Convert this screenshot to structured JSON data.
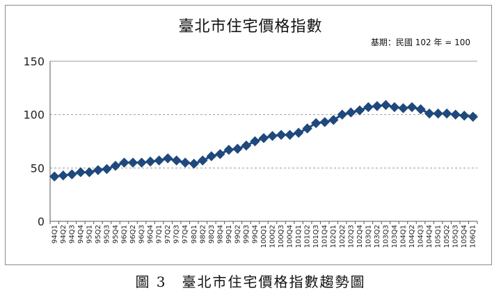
{
  "chart_data": {
    "type": "line",
    "title": "臺北市住宅價格指數",
    "note": "基期：民國 102 年 = 100",
    "ylim": [
      0,
      150
    ],
    "yticks": [
      "0",
      "50",
      "100",
      "150"
    ],
    "grid": "horizontal dashed at 50 and 100",
    "series_color": "#1F497D",
    "marker": "diamond",
    "categories": [
      "94Q1",
      "94Q2",
      "94Q3",
      "94Q4",
      "95Q1",
      "95Q2",
      "95Q3",
      "95Q4",
      "96Q1",
      "96Q2",
      "96Q3",
      "96Q4",
      "97Q1",
      "97Q2",
      "97Q3",
      "97Q4",
      "98Q1",
      "98Q2",
      "98Q3",
      "98Q4",
      "99Q1",
      "99Q2",
      "99Q3",
      "99Q4",
      "100Q1",
      "100Q2",
      "100Q3",
      "100Q4",
      "101Q1",
      "101Q2",
      "101Q3",
      "101Q4",
      "102Q1",
      "102Q2",
      "102Q3",
      "102Q4",
      "103Q1",
      "103Q2",
      "103Q3",
      "103Q4",
      "104Q1",
      "104Q2",
      "104Q3",
      "104Q4",
      "105Q1",
      "105Q2",
      "105Q3",
      "105Q4",
      "106Q1"
    ],
    "series": [
      {
        "values": [
          42,
          43,
          44,
          46,
          46,
          48,
          49,
          52,
          55,
          55,
          55,
          56,
          57,
          59,
          57,
          55,
          54,
          57,
          61,
          63,
          67,
          68,
          71,
          75,
          78,
          80,
          81,
          81,
          83,
          87,
          92,
          93,
          95,
          100,
          102,
          104,
          107,
          108,
          109,
          107,
          106,
          107,
          105,
          101,
          101,
          101,
          100,
          99,
          98
        ]
      }
    ]
  },
  "caption": "圖 3　臺北市住宅價格指數趨勢圖"
}
